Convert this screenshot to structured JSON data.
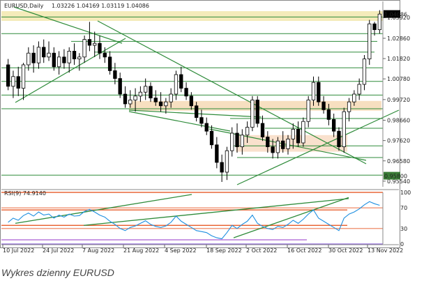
{
  "chart_data": [
    {
      "type": "candlestick",
      "symbol": "EURUSD,Daily",
      "header_values": "1.03226 1.04169 1.03119 1.04086",
      "last_price": "1.04086",
      "price_axis_ticks": [
        "1.03920",
        "1.02860",
        "1.01820",
        "1.00780",
        "0.99720",
        "0.98660",
        "0.97620",
        "0.96580",
        "0.95540"
      ],
      "price_labels_boxed": [
        "1.04086",
        "0.95800"
      ],
      "ylim": [
        0.9525,
        1.0475
      ],
      "x_ticks": [
        "10 Jul 2022",
        "24 Jul 2022",
        "7 Aug 2022",
        "21 Aug 2022",
        "4 Sep 2022",
        "18 Sep 2022",
        "2 Oct 2022",
        "16 Oct 2022",
        "30 Oct 2022",
        "13 Nov 2022"
      ],
      "candles": [
        [
          1.015,
          1.018,
          1.002,
          1.004
        ],
        [
          1.004,
          1.012,
          0.998,
          1.009
        ],
        [
          1.009,
          1.014,
          0.999,
          1.003
        ],
        [
          1.003,
          1.016,
          0.997,
          1.015
        ],
        [
          1.015,
          1.024,
          1.012,
          1.021
        ],
        [
          1.021,
          1.025,
          1.011,
          1.016
        ],
        [
          1.016,
          1.027,
          1.013,
          1.024
        ],
        [
          1.024,
          1.028,
          1.016,
          1.019
        ],
        [
          1.019,
          1.027,
          1.017,
          1.021
        ],
        [
          1.021,
          1.024,
          1.012,
          1.014
        ],
        [
          1.014,
          1.022,
          1.01,
          1.019
        ],
        [
          1.019,
          1.023,
          1.013,
          1.016
        ],
        [
          1.016,
          1.024,
          1.011,
          1.022
        ],
        [
          1.022,
          1.026,
          1.015,
          1.018
        ],
        [
          1.018,
          1.021,
          1.012,
          1.019
        ],
        [
          1.019,
          1.03,
          1.016,
          1.028
        ],
        [
          1.028,
          1.037,
          1.022,
          1.025
        ],
        [
          1.025,
          1.032,
          1.019,
          1.026
        ],
        [
          1.026,
          1.03,
          1.018,
          1.021
        ],
        [
          1.021,
          1.024,
          1.016,
          1.019
        ],
        [
          1.019,
          1.022,
          1.01,
          1.012
        ],
        [
          1.012,
          1.016,
          1.005,
          1.008
        ],
        [
          1.008,
          1.011,
          0.998,
          1.0
        ],
        [
          1.0,
          1.004,
          0.993,
          0.995
        ],
        [
          0.995,
          1.002,
          0.993,
          0.997
        ],
        [
          0.997,
          1.003,
          0.991,
          0.999
        ],
        [
          0.999,
          1.004,
          0.996,
          1.001
        ],
        [
          1.001,
          1.008,
          0.997,
          1.004
        ],
        [
          1.004,
          1.006,
          0.996,
          0.998
        ],
        [
          0.998,
          1.002,
          0.994,
          0.996
        ],
        [
          0.996,
          1.001,
          0.991,
          0.994
        ],
        [
          0.994,
          0.998,
          0.99,
          0.996
        ],
        [
          0.996,
          1.003,
          0.993,
          1.0
        ],
        [
          1.0,
          1.012,
          0.997,
          1.01
        ],
        [
          1.01,
          1.014,
          1.001,
          1.003
        ],
        [
          1.003,
          1.006,
          0.997,
          0.999
        ],
        [
          0.999,
          1.001,
          0.992,
          0.994
        ],
        [
          0.994,
          0.996,
          0.986,
          0.988
        ],
        [
          0.988,
          0.992,
          0.983,
          0.985
        ],
        [
          0.985,
          0.988,
          0.979,
          0.981
        ],
        [
          0.981,
          0.984,
          0.972,
          0.974
        ],
        [
          0.974,
          0.978,
          0.962,
          0.965
        ],
        [
          0.965,
          0.969,
          0.955,
          0.96
        ],
        [
          0.96,
          0.973,
          0.956,
          0.971
        ],
        [
          0.971,
          0.983,
          0.968,
          0.98
        ],
        [
          0.98,
          0.985,
          0.97,
          0.973
        ],
        [
          0.973,
          0.982,
          0.969,
          0.979
        ],
        [
          0.979,
          0.986,
          0.975,
          0.983
        ],
        [
          0.983,
          0.999,
          0.981,
          0.997
        ],
        [
          0.997,
          0.999,
          0.983,
          0.985
        ],
        [
          0.985,
          0.989,
          0.976,
          0.978
        ],
        [
          0.978,
          0.981,
          0.97,
          0.973
        ],
        [
          0.973,
          0.977,
          0.967,
          0.97
        ],
        [
          0.97,
          0.978,
          0.967,
          0.976
        ],
        [
          0.976,
          0.981,
          0.97,
          0.972
        ],
        [
          0.972,
          0.979,
          0.969,
          0.977
        ],
        [
          0.977,
          0.985,
          0.972,
          0.982
        ],
        [
          0.982,
          0.986,
          0.973,
          0.975
        ],
        [
          0.975,
          0.988,
          0.973,
          0.986
        ],
        [
          0.986,
          0.999,
          0.983,
          0.997
        ],
        [
          0.997,
          1.009,
          0.994,
          1.006
        ],
        [
          1.006,
          1.009,
          0.994,
          0.996
        ],
        [
          0.996,
          0.999,
          0.99,
          0.992
        ],
        [
          0.992,
          0.995,
          0.984,
          0.987
        ],
        [
          0.987,
          0.99,
          0.978,
          0.981
        ],
        [
          0.981,
          0.983,
          0.971,
          0.973
        ],
        [
          0.973,
          0.993,
          0.97,
          0.991
        ],
        [
          0.991,
          0.998,
          0.986,
          0.996
        ],
        [
          0.996,
          1.002,
          0.994,
          1.0
        ],
        [
          1.0,
          1.008,
          0.997,
          1.005
        ],
        [
          1.005,
          1.02,
          1.002,
          1.018
        ],
        [
          1.018,
          1.038,
          1.015,
          1.036
        ],
        [
          1.036,
          1.037,
          1.03,
          1.033
        ],
        [
          1.033,
          1.043,
          1.031,
          1.041
        ]
      ]
    },
    {
      "type": "line",
      "indicator": "RSI(9)",
      "label": "RSI(9) 74.9140",
      "y_ticks": [
        "100",
        "70",
        "30",
        "0"
      ],
      "ylim": [
        0,
        100
      ],
      "values": [
        42,
        50,
        46,
        55,
        60,
        54,
        62,
        56,
        58,
        50,
        56,
        52,
        58,
        54,
        55,
        63,
        67,
        62,
        56,
        52,
        44,
        38,
        30,
        26,
        32,
        35,
        40,
        45,
        38,
        34,
        32,
        35,
        42,
        54,
        44,
        38,
        32,
        26,
        24,
        22,
        16,
        12,
        10,
        22,
        36,
        30,
        38,
        44,
        56,
        40,
        34,
        30,
        28,
        34,
        32,
        38,
        46,
        40,
        48,
        58,
        66,
        50,
        44,
        38,
        32,
        26,
        50,
        58,
        62,
        68,
        76,
        82,
        78,
        75
      ]
    }
  ],
  "caption": "Wykres dzienny EURUSD"
}
